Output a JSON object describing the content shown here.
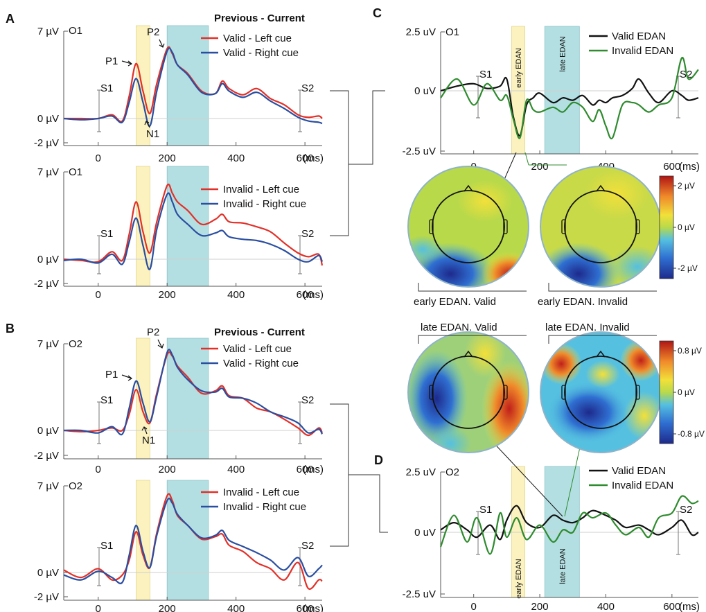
{
  "colors": {
    "red": "#e23028",
    "blue": "#2a4ea0",
    "black": "#111111",
    "green": "#2e8b2e",
    "yellow": "#fbf2c0",
    "cyan": "#b3dfe2",
    "axis": "#555555"
  },
  "panel_labels": [
    "A",
    "B",
    "C",
    "D"
  ],
  "annotations": {
    "p1": "P1",
    "p2": "P2",
    "n1": "N1",
    "s1": "S1",
    "s2": "S2"
  },
  "window_labels": {
    "early": "early EDAN",
    "late": "late EDAN"
  },
  "topomaps": {
    "early_valid": "early EDAN. Valid",
    "early_invalid": "early EDAN. Invalid",
    "late_valid": "late EDAN. Valid",
    "late_invalid": "late EDAN. Invalid"
  },
  "colorbars": {
    "early": {
      "top": "2 µV",
      "mid": "0 µV",
      "bottom": "-2 µV"
    },
    "late": {
      "top": "0.8 µV",
      "mid": "0 µV",
      "bottom": "-0.8 µV"
    }
  },
  "chart_data": [
    {
      "panel": "A",
      "type": "line",
      "channel": "O1",
      "legend_title": "Previous - Current",
      "xlabel_unit": "(ms)",
      "xticks": [
        "0",
        "200",
        "400",
        "600"
      ],
      "yticks": [
        "7 µV",
        "0 µV",
        "-2 µV"
      ],
      "xlim": [
        -100,
        650
      ],
      "ylim": [
        -2,
        7
      ],
      "windows": {
        "early": [
          110,
          150
        ],
        "late": [
          200,
          320
        ]
      },
      "x": [
        -100,
        -50,
        0,
        40,
        70,
        90,
        110,
        130,
        150,
        170,
        200,
        215,
        230,
        260,
        300,
        340,
        360,
        380,
        420,
        460,
        500,
        540,
        580,
        610,
        640,
        650
      ],
      "series": [
        {
          "name": "Valid - Left cue",
          "color": "red",
          "values": [
            0,
            0,
            0,
            0.3,
            -0.2,
            1.8,
            4.4,
            2.2,
            0.4,
            2.8,
            5.6,
            5.2,
            4.3,
            3.6,
            2.2,
            2.0,
            3.0,
            2.4,
            1.9,
            2.4,
            1.6,
            1.1,
            0.3,
            0.1,
            0.2,
            0
          ]
        },
        {
          "name": "Valid - Right cue",
          "color": "blue",
          "values": [
            0,
            -0.1,
            0,
            0.2,
            -0.3,
            1.3,
            3.2,
            1.3,
            -0.6,
            2.2,
            5.4,
            5.3,
            4.3,
            3.5,
            2.1,
            2.0,
            2.8,
            2.2,
            1.7,
            2.1,
            1.4,
            0.8,
            0.1,
            -0.2,
            -0.3,
            -0.4
          ]
        }
      ],
      "annotations": {
        "P1_x": 110,
        "P2_x": 205,
        "N1_x": 155
      }
    },
    {
      "panel": "A",
      "type": "line",
      "channel": "O1",
      "xlabel_unit": "(ms)",
      "xticks": [
        "0",
        "200",
        "400",
        "600"
      ],
      "yticks": [
        "7 µV",
        "0 µV",
        "-2 µV"
      ],
      "xlim": [
        -100,
        650
      ],
      "ylim": [
        -2,
        7
      ],
      "windows": {
        "early": [
          110,
          150
        ],
        "late": [
          200,
          320
        ]
      },
      "x": [
        -100,
        -50,
        0,
        40,
        70,
        90,
        110,
        130,
        150,
        170,
        200,
        215,
        230,
        260,
        300,
        340,
        360,
        380,
        420,
        460,
        500,
        540,
        580,
        610,
        640,
        650
      ],
      "series": [
        {
          "name": "Invalid - Left cue",
          "color": "red",
          "values": [
            0,
            -0.1,
            -0.2,
            0.6,
            -0.1,
            2.0,
            4.6,
            2.2,
            0.5,
            3.0,
            5.9,
            5.3,
            4.6,
            3.9,
            2.8,
            3.2,
            3.6,
            3.0,
            2.9,
            2.6,
            2.2,
            1.3,
            0.5,
            0.2,
            0.4,
            -0.5
          ]
        },
        {
          "name": "Invalid - Right cue",
          "color": "blue",
          "values": [
            -0.1,
            0,
            -0.3,
            0.4,
            -0.4,
            1.4,
            3.3,
            1.1,
            -0.8,
            2.4,
            5.2,
            4.6,
            3.6,
            2.8,
            1.9,
            2.1,
            2.3,
            1.8,
            1.6,
            1.5,
            1.2,
            0.7,
            0.0,
            -0.2,
            0.3,
            -0.2
          ]
        }
      ]
    },
    {
      "panel": "B",
      "type": "line",
      "channel": "O2",
      "legend_title": "Previous - Current",
      "xlabel_unit": "(ms)",
      "xticks": [
        "0",
        "200",
        "400",
        "600"
      ],
      "yticks": [
        "7 µV",
        "0 µV",
        "-2 µV"
      ],
      "xlim": [
        -100,
        650
      ],
      "ylim": [
        -2,
        7
      ],
      "windows": {
        "early": [
          110,
          150
        ],
        "late": [
          200,
          320
        ]
      },
      "x": [
        -100,
        -50,
        0,
        40,
        70,
        90,
        110,
        130,
        150,
        170,
        200,
        215,
        230,
        260,
        300,
        340,
        360,
        380,
        420,
        460,
        500,
        540,
        580,
        610,
        640,
        650
      ],
      "series": [
        {
          "name": "Valid - Left cue",
          "color": "red",
          "values": [
            0,
            -0.1,
            0,
            0.2,
            0,
            1.3,
            3.3,
            1.5,
            0.6,
            3.0,
            6.1,
            6.0,
            5.2,
            4.3,
            3.0,
            3.2,
            3.6,
            2.8,
            2.6,
            1.8,
            1.5,
            0.9,
            0.2,
            -0.4,
            0.2,
            -0.2
          ]
        },
        {
          "name": "Valid - Right cue",
          "color": "blue",
          "values": [
            0,
            0,
            -0.2,
            0.3,
            -0.3,
            1.8,
            4.0,
            2.2,
            0.7,
            2.8,
            6.3,
            6.1,
            5.1,
            4.1,
            3.2,
            3.1,
            3.4,
            2.7,
            2.6,
            2.2,
            1.5,
            1.1,
            0.6,
            -0.2,
            0.1,
            -0.3
          ]
        }
      ],
      "annotations": {
        "P1_x": 110,
        "P2_x": 205,
        "N1_x": 150
      }
    },
    {
      "panel": "B",
      "type": "line",
      "channel": "O2",
      "xlabel_unit": "(ms)",
      "xticks": [
        "0",
        "200",
        "400",
        "600"
      ],
      "yticks": [
        "7 µV",
        "0 µV",
        "-2 µV"
      ],
      "xlim": [
        -100,
        650
      ],
      "ylim": [
        -2,
        7
      ],
      "windows": {
        "early": [
          110,
          150
        ],
        "late": [
          200,
          320
        ]
      },
      "x": [
        -100,
        -50,
        0,
        40,
        70,
        90,
        110,
        130,
        150,
        170,
        200,
        215,
        230,
        260,
        300,
        340,
        360,
        380,
        420,
        460,
        500,
        540,
        580,
        610,
        640,
        650
      ],
      "series": [
        {
          "name": "Invalid - Left cue",
          "color": "red",
          "values": [
            0.2,
            -0.4,
            0.3,
            -0.6,
            -0.2,
            1.0,
            3.3,
            1.4,
            0.4,
            3.2,
            6.2,
            5.8,
            4.6,
            3.8,
            2.7,
            2.9,
            3.1,
            2.2,
            1.7,
            0.8,
            0.3,
            -0.6,
            0.8,
            -1.3,
            -0.6,
            -0.7
          ]
        },
        {
          "name": "Invalid - Right cue",
          "color": "blue",
          "values": [
            -0.2,
            -0.6,
            0.1,
            -0.4,
            -0.8,
            1.4,
            3.8,
            1.7,
            0.4,
            3.0,
            5.8,
            5.6,
            4.7,
            3.8,
            2.8,
            3.0,
            3.4,
            2.6,
            2.1,
            1.6,
            1.0,
            0.2,
            1.2,
            -0.3,
            0.3,
            0.6
          ]
        }
      ]
    },
    {
      "panel": "C",
      "type": "line",
      "channel": "O1",
      "xlabel_unit": "(ms)",
      "xticks": [
        "0",
        "200",
        "400",
        "600"
      ],
      "yticks": [
        "2.5 uV",
        "0 uV",
        "-2.5 uV"
      ],
      "xlim": [
        -100,
        680
      ],
      "ylim": [
        -2.5,
        2.5
      ],
      "windows": {
        "early": [
          115,
          155
        ],
        "late": [
          215,
          320
        ]
      },
      "x": [
        -100,
        -50,
        0,
        40,
        80,
        100,
        120,
        140,
        160,
        180,
        200,
        240,
        270,
        300,
        330,
        360,
        380,
        400,
        420,
        450,
        480,
        500,
        530,
        560,
        600,
        630,
        650,
        680
      ],
      "series": [
        {
          "name": "Valid EDAN",
          "color": "black",
          "values": [
            0,
            0.2,
            0.3,
            0.1,
            0.2,
            0.5,
            -1.1,
            -1.9,
            -0.6,
            -0.3,
            -0.1,
            -0.5,
            -0.3,
            -0.4,
            -0.2,
            -0.6,
            -0.4,
            -0.5,
            -0.3,
            -0.2,
            0.1,
            0.5,
            -0.1,
            -0.5,
            0,
            -0.2,
            -0.4,
            -0.3
          ]
        },
        {
          "name": "Invalid EDAN",
          "color": "green",
          "values": [
            -0.3,
            0.5,
            -0.6,
            0.3,
            -0.4,
            -0.2,
            -1.2,
            -2.0,
            -0.4,
            -0.8,
            -0.9,
            -0.7,
            -0.9,
            -0.5,
            -0.7,
            -1.3,
            -0.8,
            -1.5,
            -2.0,
            -0.6,
            -0.5,
            -0.6,
            -0.9,
            -0.6,
            -0.3,
            1.4,
            0.5,
            0.9
          ]
        }
      ]
    },
    {
      "panel": "D",
      "type": "line",
      "channel": "O2",
      "xlabel_unit": "(ms)",
      "xticks": [
        "0",
        "200",
        "400",
        "600"
      ],
      "yticks": [
        "2.5 uV",
        "0 uV",
        "-2.5 uV"
      ],
      "xlim": [
        -100,
        680
      ],
      "ylim": [
        -2.5,
        2.5
      ],
      "windows": {
        "early": [
          115,
          155
        ],
        "late": [
          215,
          320
        ]
      },
      "x": [
        -100,
        -60,
        -20,
        10,
        50,
        80,
        100,
        130,
        160,
        200,
        240,
        270,
        300,
        330,
        360,
        400,
        430,
        460,
        500,
        530,
        560,
        600,
        630,
        660,
        680
      ],
      "series": [
        {
          "name": "Valid EDAN",
          "color": "black",
          "values": [
            0.1,
            0.4,
            0.1,
            -0.2,
            0.3,
            -0.3,
            0.5,
            1.1,
            0.4,
            0.2,
            0.7,
            0.5,
            0.4,
            0.6,
            0.9,
            0.7,
            0.5,
            0.2,
            0.3,
            0.1,
            -0.1,
            0.2,
            0.5,
            -0.1,
            0.0
          ]
        },
        {
          "name": "Invalid EDAN",
          "color": "green",
          "values": [
            -0.6,
            0.7,
            -0.4,
            0.6,
            -0.9,
            0.8,
            -0.2,
            0.6,
            -0.3,
            0.3,
            -0.4,
            0.1,
            0.0,
            0.8,
            0.6,
            0.8,
            0.3,
            -0.1,
            0.2,
            -0.2,
            0.6,
            0.8,
            1.5,
            1.2,
            1.3
          ]
        }
      ]
    }
  ]
}
